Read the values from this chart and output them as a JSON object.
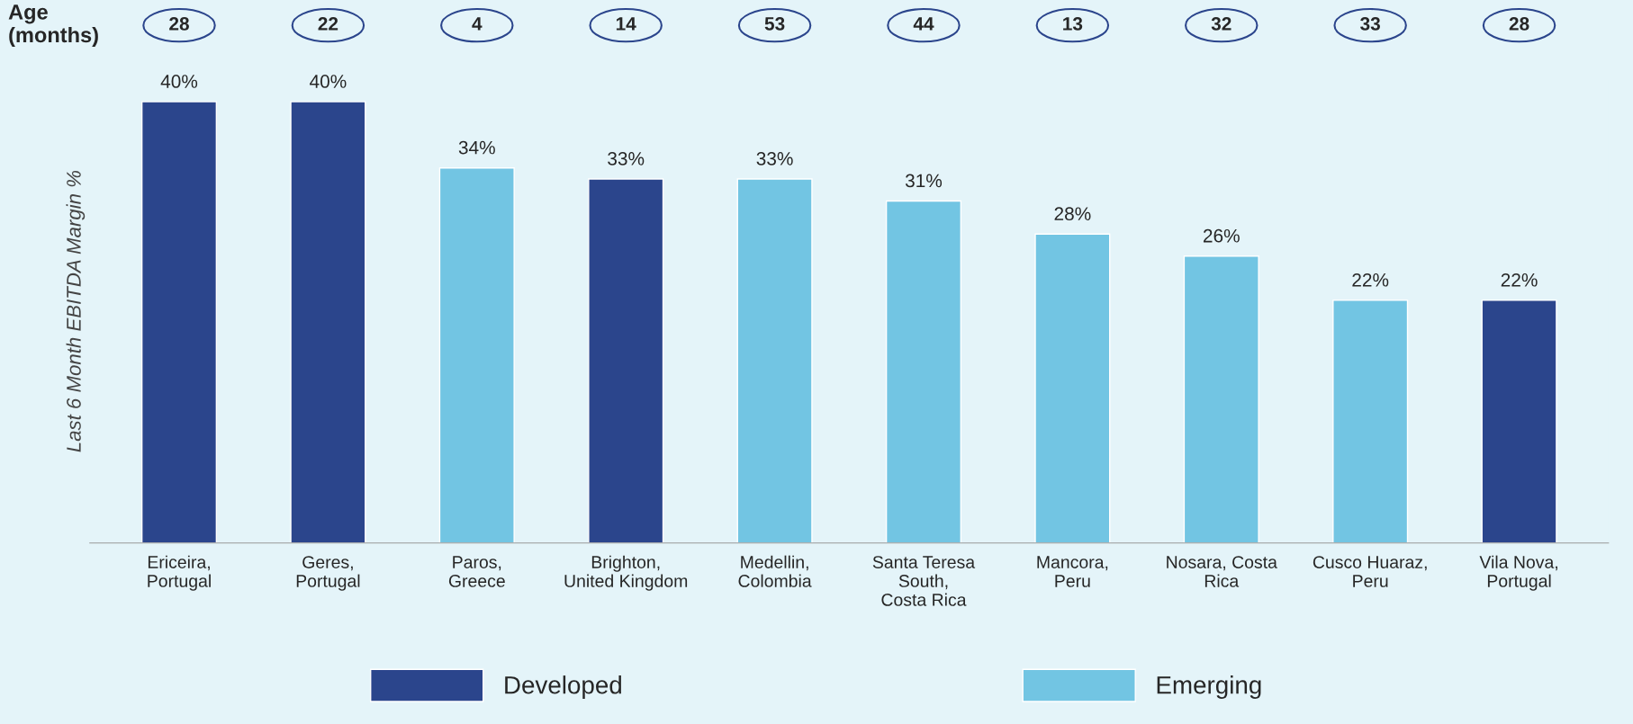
{
  "chart_data": {
    "type": "bar",
    "ylabel": "Last 6 Month EBITDA Margin %",
    "categories": [
      "Ericeira,\nPortugal",
      "Geres,\nPortugal",
      "Paros,\nGreece",
      "Brighton,\nUnited Kingdom",
      "Medellin,\nColombia",
      "Santa Teresa\nSouth,\nCosta Rica",
      "Mancora,\nPeru",
      "Nosara, Costa\nRica",
      "Cusco Huaraz,\nPeru",
      "Vila Nova,\nPortugal"
    ],
    "series": [
      {
        "name": "Developed",
        "color": "#2b458c",
        "values": [
          40,
          40,
          null,
          33,
          null,
          null,
          null,
          null,
          null,
          22
        ],
        "value_labels": [
          "40%",
          "40%",
          null,
          "33%",
          null,
          null,
          null,
          null,
          null,
          "22%"
        ]
      },
      {
        "name": "Emerging",
        "color": "#72c5e3",
        "values": [
          null,
          null,
          34,
          null,
          33,
          31,
          28,
          26,
          22,
          null
        ],
        "value_labels": [
          null,
          null,
          "34%",
          null,
          "33%",
          "31%",
          "28%",
          "26%",
          "22%",
          null
        ]
      }
    ],
    "legend": "bottom",
    "grid": false,
    "annotations": [
      "Age\n(months)",
      "28",
      "22",
      "4",
      "14",
      "53",
      "44",
      "13",
      "32",
      "33",
      "28"
    ]
  }
}
